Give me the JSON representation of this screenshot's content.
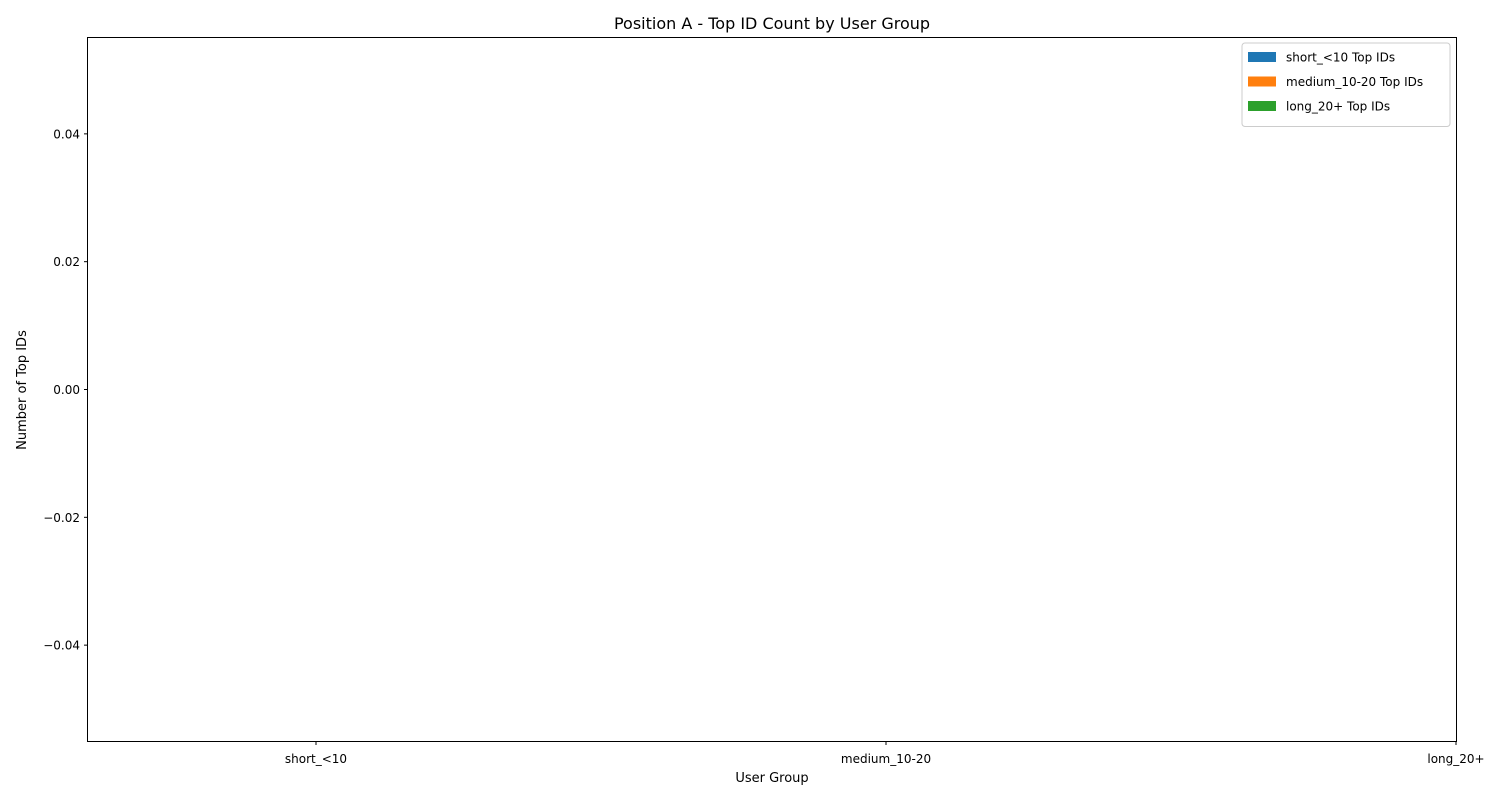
{
  "chart_data": {
    "type": "bar",
    "title": "Position A - Top ID Count by User Group",
    "xlabel": "User Group",
    "ylabel": "Number of Top IDs",
    "categories": [
      "short_<10",
      "medium_10-20",
      "long_20+"
    ],
    "series": [
      {
        "name": "short_<10 Top IDs",
        "values": [
          0,
          0,
          0
        ],
        "color": "#1f77b4"
      },
      {
        "name": "medium_10-20 Top IDs",
        "values": [
          0,
          0,
          0
        ],
        "color": "#ff7f0e"
      },
      {
        "name": "long_20+ Top IDs",
        "values": [
          0,
          0,
          0
        ],
        "color": "#2ca02c"
      }
    ],
    "ylim": [
      -0.055,
      0.055
    ],
    "yticks": [
      0.04,
      0.02,
      0.0,
      -0.02,
      -0.04
    ],
    "ytick_labels": [
      "0.04",
      "0.02",
      "0.00",
      "−0.02",
      "−0.04"
    ],
    "grid": false,
    "legend_position": "top-right"
  }
}
